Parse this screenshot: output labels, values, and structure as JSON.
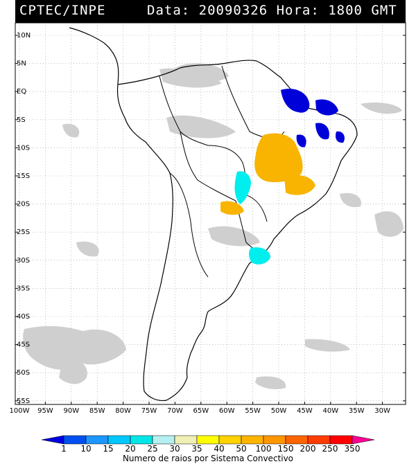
{
  "header": {
    "source": "CPTEC/INPE",
    "datetime": "Data: 20090326 Hora: 1800 GMT"
  },
  "map": {
    "lat_labels": [
      "10N",
      "5N",
      "EQ",
      "5S",
      "10S",
      "15S",
      "20S",
      "25S",
      "30S",
      "35S",
      "40S",
      "45S",
      "50S",
      "55S"
    ],
    "lon_labels": [
      "100W",
      "95W",
      "90W",
      "85W",
      "80W",
      "75W",
      "70W",
      "65W",
      "60W",
      "55W",
      "50W",
      "45W",
      "40W",
      "35W",
      "30W"
    ],
    "grid": true
  },
  "colorbar": {
    "title": "Numero de raios por Sistema Convectivo",
    "ticks": [
      "1",
      "10",
      "15",
      "20",
      "25",
      "30",
      "35",
      "40",
      "50",
      "100",
      "150",
      "200",
      "250",
      "350"
    ],
    "colors": [
      "#0000e0",
      "#0050f0",
      "#1e96ff",
      "#00c8ff",
      "#00e6e6",
      "#b4f0f0",
      "#f0f0b4",
      "#ffff00",
      "#ffd200",
      "#ffb400",
      "#ff9600",
      "#ff6400",
      "#ff3c00",
      "#ff0000",
      "#ff0096"
    ]
  }
}
